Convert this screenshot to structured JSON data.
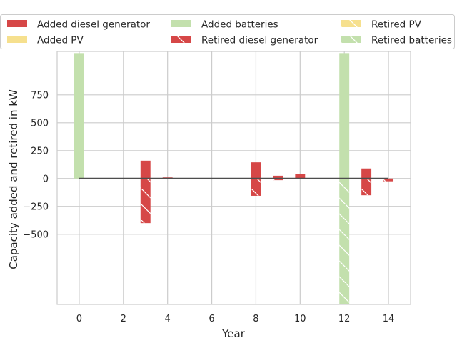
{
  "chart_data": {
    "type": "bar",
    "xlabel": "Year",
    "ylabel": "Capacity added and retired in kW",
    "xlim": [
      -1,
      15
    ],
    "ylim": [
      -1130,
      1140
    ],
    "xticks": [
      0,
      2,
      4,
      6,
      8,
      10,
      12,
      14
    ],
    "yticks": [
      -500,
      -250,
      0,
      250,
      500,
      750
    ],
    "grid": true,
    "legend_position": "top, above plot, 3 columns",
    "series": [
      {
        "name": "Added diesel generator",
        "kind": "added",
        "color": "#d64747",
        "hatch": false,
        "points": [
          {
            "x": 3,
            "value": 160
          },
          {
            "x": 4,
            "value": 10
          },
          {
            "x": 8,
            "value": 145
          },
          {
            "x": 9,
            "value": 25
          },
          {
            "x": 10,
            "value": 40
          },
          {
            "x": 13,
            "value": 90
          }
        ]
      },
      {
        "name": "Added PV",
        "kind": "added",
        "color": "#f6e08e",
        "hatch": false,
        "points": []
      },
      {
        "name": "Added batteries",
        "kind": "added",
        "color": "#c3e0ad",
        "hatch": false,
        "points": [
          {
            "x": 0,
            "value": 1125
          },
          {
            "x": 12,
            "value": 1125
          }
        ]
      },
      {
        "name": "Retired diesel generator",
        "kind": "retired",
        "color": "#d64747",
        "hatch": true,
        "points": [
          {
            "x": 3,
            "value": -400
          },
          {
            "x": 8,
            "value": -155
          },
          {
            "x": 9,
            "value": -15
          },
          {
            "x": 13,
            "value": -150
          },
          {
            "x": 14,
            "value": -25
          }
        ]
      },
      {
        "name": "Retired PV",
        "kind": "retired",
        "color": "#f6e08e",
        "hatch": true,
        "points": []
      },
      {
        "name": "Retired batteries",
        "kind": "retired",
        "color": "#c3e0ad",
        "hatch": true,
        "points": [
          {
            "x": 12,
            "value": -1125
          }
        ]
      }
    ],
    "net_line": {
      "color": "#4d4d4d",
      "x_range": [
        0,
        14
      ],
      "value": 0
    }
  }
}
